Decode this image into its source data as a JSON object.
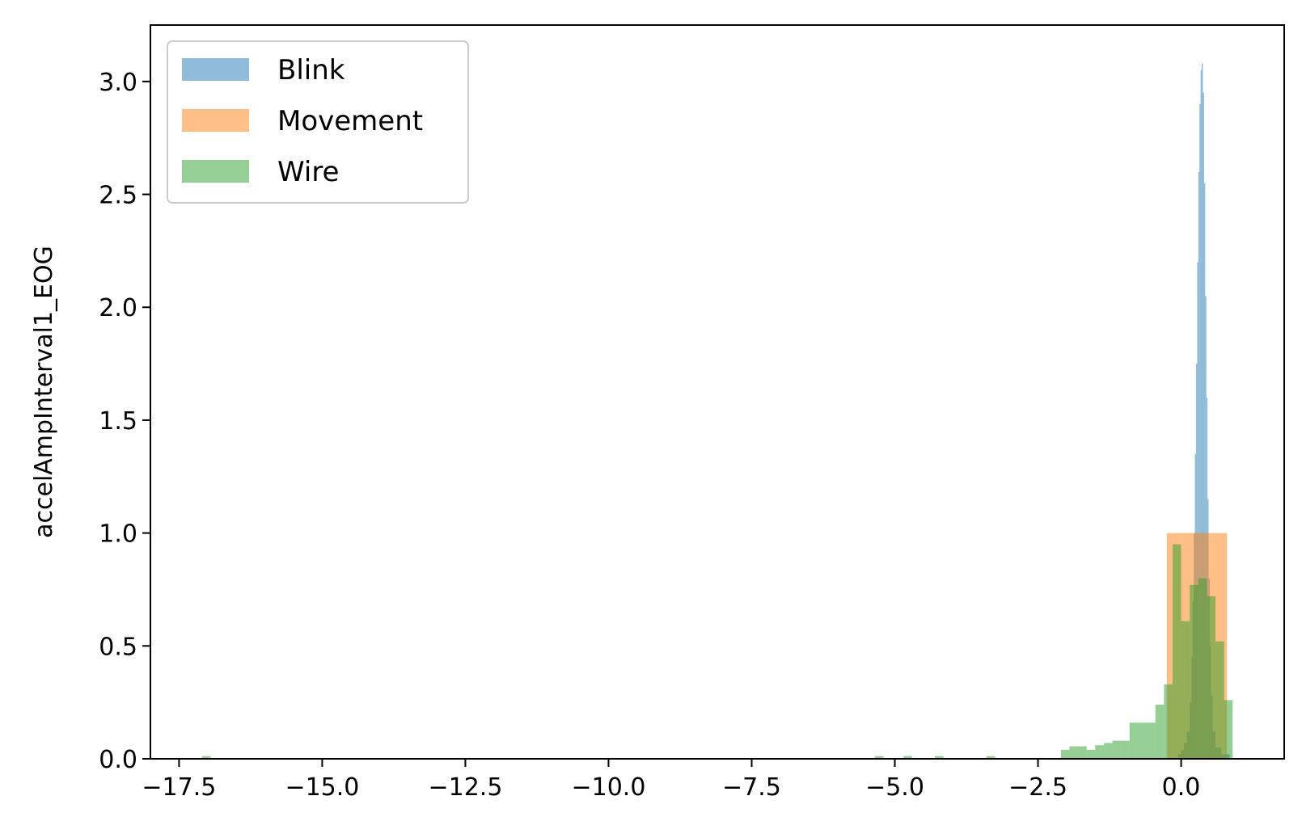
{
  "chart_data": {
    "type": "histogram",
    "title": "",
    "xlabel": "",
    "ylabel": "accelAmpInterval1_EOG",
    "xlim": [
      -18,
      1.8
    ],
    "ylim": [
      0,
      3.25
    ],
    "x_ticks": [
      -17.5,
      -15.0,
      -12.5,
      -10.0,
      -7.5,
      -5.0,
      -2.5,
      0.0
    ],
    "x_tick_labels": [
      "−17.5",
      "−15.0",
      "−12.5",
      "−10.0",
      "−7.5",
      "−5.0",
      "−2.5",
      "0.0"
    ],
    "y_ticks": [
      0.0,
      0.5,
      1.0,
      1.5,
      2.0,
      2.5,
      3.0
    ],
    "y_tick_labels": [
      "0.0",
      "0.5",
      "1.0",
      "1.5",
      "2.0",
      "2.5",
      "3.0"
    ],
    "grid": false,
    "legend_position": "top-left",
    "series": [
      {
        "name": "Blink",
        "color": "#1f77b4",
        "alpha": 0.5,
        "bins": [
          [
            -0.05,
            0.0,
            0.02
          ],
          [
            0.0,
            0.05,
            0.04
          ],
          [
            0.05,
            0.1,
            0.07
          ],
          [
            0.1,
            0.15,
            0.12
          ],
          [
            0.15,
            0.18,
            0.25
          ],
          [
            0.18,
            0.2,
            0.45
          ],
          [
            0.2,
            0.22,
            0.7
          ],
          [
            0.22,
            0.24,
            1.0
          ],
          [
            0.24,
            0.26,
            1.35
          ],
          [
            0.26,
            0.28,
            1.75
          ],
          [
            0.28,
            0.3,
            2.2
          ],
          [
            0.3,
            0.32,
            2.6
          ],
          [
            0.32,
            0.34,
            2.9
          ],
          [
            0.34,
            0.36,
            3.05
          ],
          [
            0.36,
            0.38,
            3.08
          ],
          [
            0.38,
            0.4,
            2.95
          ],
          [
            0.4,
            0.42,
            2.55
          ],
          [
            0.42,
            0.44,
            2.05
          ],
          [
            0.44,
            0.46,
            1.6
          ],
          [
            0.46,
            0.48,
            1.15
          ],
          [
            0.48,
            0.5,
            0.8
          ],
          [
            0.5,
            0.52,
            0.5
          ],
          [
            0.52,
            0.55,
            0.28
          ],
          [
            0.55,
            0.6,
            0.12
          ],
          [
            0.6,
            0.7,
            0.05
          ],
          [
            0.7,
            0.85,
            0.02
          ]
        ]
      },
      {
        "name": "Movement",
        "color": "#ff7f0e",
        "alpha": 0.5,
        "bins": [
          [
            -0.25,
            0.2,
            1.0
          ],
          [
            0.2,
            0.6,
            1.0
          ],
          [
            0.6,
            0.8,
            1.0
          ],
          [
            0.8,
            0.85,
            0.0
          ]
        ]
      },
      {
        "name": "Wire",
        "color": "#2ca02c",
        "alpha": 0.5,
        "bins": [
          [
            -17.1,
            -16.95,
            0.012
          ],
          [
            -5.35,
            -5.2,
            0.012
          ],
          [
            -4.85,
            -4.7,
            0.012
          ],
          [
            -4.3,
            -4.15,
            0.012
          ],
          [
            -3.4,
            -3.25,
            0.012
          ],
          [
            -2.1,
            -1.95,
            0.04
          ],
          [
            -1.95,
            -1.8,
            0.055
          ],
          [
            -1.8,
            -1.65,
            0.055
          ],
          [
            -1.65,
            -1.5,
            0.04
          ],
          [
            -1.5,
            -1.35,
            0.06
          ],
          [
            -1.35,
            -1.2,
            0.07
          ],
          [
            -1.2,
            -1.05,
            0.08
          ],
          [
            -1.05,
            -0.9,
            0.08
          ],
          [
            -0.9,
            -0.75,
            0.16
          ],
          [
            -0.75,
            -0.6,
            0.16
          ],
          [
            -0.6,
            -0.45,
            0.16
          ],
          [
            -0.45,
            -0.3,
            0.24
          ],
          [
            -0.3,
            -0.15,
            0.33
          ],
          [
            -0.15,
            0.0,
            0.95
          ],
          [
            0.0,
            0.15,
            0.61
          ],
          [
            0.15,
            0.3,
            0.77
          ],
          [
            0.3,
            0.45,
            0.8
          ],
          [
            0.45,
            0.6,
            0.72
          ],
          [
            0.6,
            0.75,
            0.52
          ],
          [
            0.75,
            0.9,
            0.26
          ]
        ]
      }
    ]
  }
}
